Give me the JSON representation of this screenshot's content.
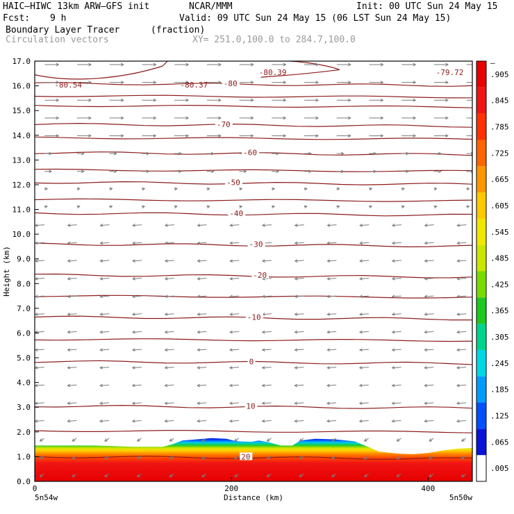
{
  "header": {
    "model": "HAIC–HIWC 13km ARW–GFS init",
    "org": "NCAR/MMM",
    "init": "Init: 00 UTC Sun 24 May 15",
    "fcst_label": "Fcst:",
    "fcst_value": "9 h",
    "valid": "Valid: 09 UTC Sun 24 May 15 (06 LST Sun 24 May 15)",
    "field": "Boundary Layer Tracer",
    "field_units": "(fraction)",
    "vectors": "Circulation vectors",
    "xy": "XY= 251.0,100.0 to 284.7,100.0"
  },
  "colors": {
    "contour": "#8b1a1a",
    "vector": "#7a7a7a",
    "colorbar": [
      "#ffffff",
      "#0a14d8",
      "#0050ff",
      "#009cff",
      "#00d8e6",
      "#00d48c",
      "#1ec81e",
      "#78dc00",
      "#c8e600",
      "#f0e600",
      "#ffc800",
      "#ff9600",
      "#ff6400",
      "#ff3200",
      "#f01414",
      "#e60000"
    ]
  },
  "chart_data": {
    "type": "cross-section",
    "xlabel": "Distance (km)",
    "ylabel": "Height (km)",
    "xlim": [
      0,
      445
    ],
    "ylim": [
      0.0,
      17.0
    ],
    "x_ticks": [
      "0",
      "200",
      "400"
    ],
    "y_ticks": [
      "0.0",
      "1.0",
      "2.0",
      "3.0",
      "4.0",
      "5.0",
      "6.0",
      "7.0",
      "8.0",
      "9.0",
      "10.0",
      "11.0",
      "12.0",
      "13.0",
      "14.0",
      "15.0",
      "16.0",
      "17.0"
    ],
    "x_endpoints": [
      "5n54w",
      "5n50w"
    ],
    "colorbar_labels": [
      ".005",
      ".065",
      ".125",
      ".185",
      ".245",
      ".305",
      ".365",
      ".425",
      ".485",
      ".545",
      ".605",
      ".665",
      ".725",
      ".785",
      ".845",
      ".905",
      "–"
    ],
    "temperature_contours": [
      {
        "label": "20",
        "height_km": 1.0,
        "x_km": 210
      },
      {
        "label": "10",
        "height_km": 3.05,
        "x_km": 215
      },
      {
        "label": "0",
        "height_km": 4.85,
        "x_km": 218
      },
      {
        "label": "-10",
        "height_km": 6.65,
        "x_km": 216
      },
      {
        "label": "-20",
        "height_km": 8.35,
        "x_km": 222
      },
      {
        "label": "-30",
        "height_km": 9.6,
        "x_km": 218
      },
      {
        "label": "-40",
        "height_km": 10.85,
        "x_km": 198
      },
      {
        "label": "-50",
        "height_km": 12.1,
        "x_km": 195
      },
      {
        "label": "-60",
        "height_km": 13.3,
        "x_km": 212
      },
      {
        "label": "-70",
        "height_km": 14.45,
        "x_km": 185
      },
      {
        "label": "-80",
        "height_km": 16.1,
        "x_km": 192
      }
    ],
    "extrema_labels": [
      {
        "label": "-80.54",
        "x_km": 20,
        "height_km": 16.05
      },
      {
        "label": "-80.37",
        "x_km": 148,
        "height_km": 16.05
      },
      {
        "label": "-80.39",
        "x_km": 228,
        "height_km": 16.55
      },
      {
        "label": "-79.72",
        "x_km": 408,
        "height_km": 16.55
      }
    ],
    "tracer_top_km": [
      [
        0,
        1.45
      ],
      [
        60,
        1.45
      ],
      [
        100,
        1.4
      ],
      [
        130,
        1.4
      ],
      [
        140,
        1.5
      ],
      [
        150,
        1.65
      ],
      [
        165,
        1.7
      ],
      [
        180,
        1.75
      ],
      [
        195,
        1.72
      ],
      [
        205,
        1.62
      ],
      [
        220,
        1.6
      ],
      [
        228,
        1.65
      ],
      [
        238,
        1.58
      ],
      [
        250,
        1.45
      ],
      [
        262,
        1.45
      ],
      [
        270,
        1.65
      ],
      [
        285,
        1.72
      ],
      [
        305,
        1.7
      ],
      [
        325,
        1.62
      ],
      [
        340,
        1.38
      ],
      [
        350,
        1.2
      ],
      [
        370,
        1.12
      ],
      [
        385,
        1.1
      ],
      [
        400,
        1.15
      ],
      [
        415,
        1.25
      ],
      [
        430,
        1.32
      ],
      [
        445,
        1.35
      ]
    ]
  }
}
